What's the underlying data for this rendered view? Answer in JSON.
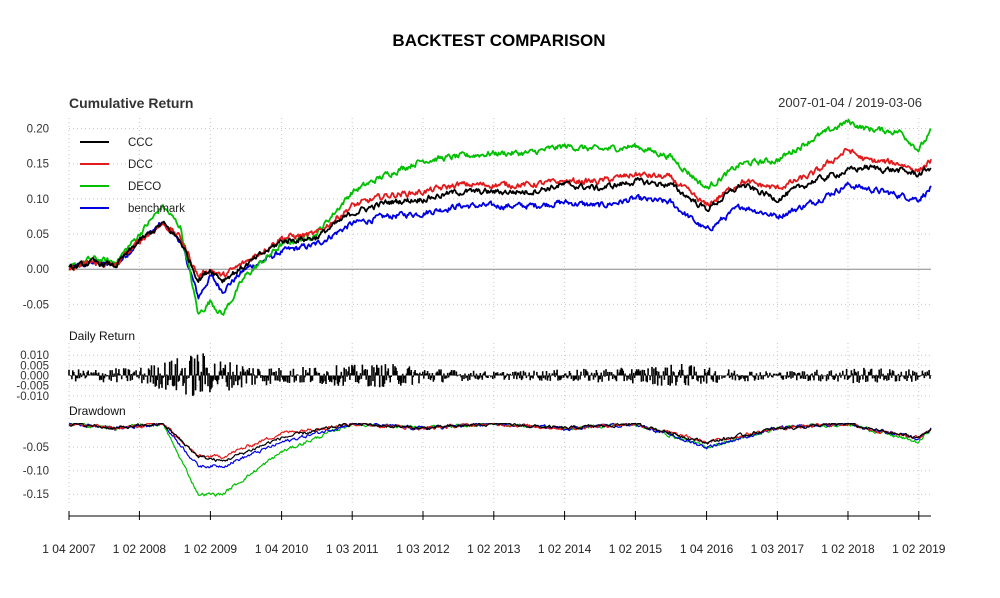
{
  "chart_data": {
    "type": "line",
    "title": "BACKTEST COMPARISON",
    "subtitle": "Cumulative Return",
    "date_range": "2007-01-04 / 2019-03-06",
    "x_tick_labels": [
      "1 04 2007",
      "1 02 2008",
      "1 02 2009",
      "1 04 2010",
      "1 03 2011",
      "1 03 2012",
      "1 02 2013",
      "1 02 2014",
      "1 02 2015",
      "1 04 2016",
      "1 03 2017",
      "1 02 2018",
      "1 02 2019"
    ],
    "grid": true,
    "legend_position": "top-left",
    "panels": [
      {
        "label": "Cumulative Return",
        "ylim": [
          -0.075,
          0.215
        ],
        "y_ticks": [
          "0.20",
          "0.15",
          "0.10",
          "0.05",
          "0.00",
          "-0.05"
        ],
        "y_tick_values": [
          0.2,
          0.15,
          0.1,
          0.05,
          0.0,
          -0.05
        ],
        "zero_line": true,
        "series": [
          {
            "name": "CCC",
            "color": "#000000",
            "x": [
              "2007-01-04",
              "2007-05-01",
              "2007-09-01",
              "2008-01-02",
              "2008-05-01",
              "2008-08-01",
              "2008-11-01",
              "2009-01-02",
              "2009-03-05",
              "2009-07-01",
              "2010-01-04",
              "2010-07-01",
              "2011-01-03",
              "2011-07-01",
              "2012-01-03",
              "2012-07-02",
              "2013-01-02",
              "2013-07-01",
              "2014-01-02",
              "2014-07-01",
              "2015-01-02",
              "2015-07-01",
              "2016-01-04",
              "2016-07-01",
              "2017-01-03",
              "2017-07-03",
              "2018-01-02",
              "2018-04-02",
              "2018-10-01",
              "2019-01-02",
              "2019-03-06"
            ],
            "values": [
              0.0,
              0.01,
              0.005,
              0.04,
              0.065,
              0.04,
              -0.015,
              0.0,
              -0.015,
              0.005,
              0.04,
              0.045,
              0.08,
              0.095,
              0.1,
              0.11,
              0.11,
              0.11,
              0.12,
              0.115,
              0.125,
              0.12,
              0.085,
              0.12,
              0.1,
              0.125,
              0.14,
              0.145,
              0.14,
              0.135,
              0.145
            ]
          },
          {
            "name": "DCC",
            "color": "#e31a1c",
            "x": [
              "2007-01-04",
              "2007-05-01",
              "2007-09-01",
              "2008-01-02",
              "2008-05-01",
              "2008-08-01",
              "2008-11-01",
              "2009-01-02",
              "2009-03-05",
              "2009-07-01",
              "2010-01-04",
              "2010-07-01",
              "2011-01-03",
              "2011-07-01",
              "2012-01-03",
              "2012-07-02",
              "2013-01-02",
              "2013-07-01",
              "2014-01-02",
              "2014-07-01",
              "2015-01-02",
              "2015-07-01",
              "2016-01-04",
              "2016-07-01",
              "2017-01-03",
              "2017-07-03",
              "2018-01-02",
              "2018-04-02",
              "2018-10-01",
              "2019-01-02",
              "2019-03-06"
            ],
            "values": [
              0.0,
              0.01,
              0.005,
              0.04,
              0.065,
              0.045,
              -0.01,
              0.0,
              -0.01,
              0.01,
              0.045,
              0.05,
              0.09,
              0.105,
              0.11,
              0.12,
              0.12,
              0.12,
              0.125,
              0.125,
              0.135,
              0.13,
              0.09,
              0.125,
              0.115,
              0.135,
              0.17,
              0.155,
              0.15,
              0.14,
              0.155
            ]
          },
          {
            "name": "DECO",
            "color": "#00c000",
            "x": [
              "2007-01-04",
              "2007-05-01",
              "2007-09-01",
              "2008-01-02",
              "2008-05-01",
              "2008-08-01",
              "2008-11-01",
              "2009-01-02",
              "2009-03-05",
              "2009-07-01",
              "2010-01-04",
              "2010-07-01",
              "2011-01-03",
              "2011-07-01",
              "2012-01-03",
              "2012-07-02",
              "2013-01-02",
              "2013-07-01",
              "2014-01-02",
              "2014-07-01",
              "2015-01-02",
              "2015-07-01",
              "2016-01-04",
              "2016-07-01",
              "2017-01-03",
              "2017-07-03",
              "2018-01-02",
              "2018-04-02",
              "2018-10-01",
              "2019-01-02",
              "2019-03-06"
            ],
            "values": [
              0.0,
              0.015,
              0.01,
              0.05,
              0.09,
              0.06,
              -0.065,
              -0.045,
              -0.065,
              -0.01,
              0.035,
              0.05,
              0.11,
              0.135,
              0.155,
              0.16,
              0.165,
              0.165,
              0.175,
              0.17,
              0.175,
              0.16,
              0.115,
              0.15,
              0.155,
              0.185,
              0.21,
              0.2,
              0.195,
              0.17,
              0.195
            ]
          },
          {
            "name": "benchmark",
            "color": "#0000e0",
            "x": [
              "2007-01-04",
              "2007-05-01",
              "2007-09-01",
              "2008-01-02",
              "2008-05-01",
              "2008-08-01",
              "2008-11-01",
              "2009-01-02",
              "2009-03-05",
              "2009-07-01",
              "2010-01-04",
              "2010-07-01",
              "2011-01-03",
              "2011-07-01",
              "2012-01-03",
              "2012-07-02",
              "2013-01-02",
              "2013-07-01",
              "2014-01-02",
              "2014-07-01",
              "2015-01-02",
              "2015-07-01",
              "2016-01-04",
              "2016-07-01",
              "2017-01-03",
              "2017-07-03",
              "2018-01-02",
              "2018-04-02",
              "2018-10-01",
              "2019-01-02",
              "2019-03-06"
            ],
            "values": [
              0.0,
              0.01,
              0.005,
              0.04,
              0.065,
              0.04,
              -0.04,
              -0.01,
              -0.03,
              0.0,
              0.025,
              0.035,
              0.065,
              0.075,
              0.08,
              0.09,
              0.09,
              0.09,
              0.095,
              0.09,
              0.1,
              0.095,
              0.055,
              0.09,
              0.075,
              0.095,
              0.12,
              0.115,
              0.105,
              0.1,
              0.115
            ]
          }
        ]
      },
      {
        "label": "Daily Return",
        "ylim": [
          -0.016,
          0.016
        ],
        "y_ticks": [
          "0.010",
          "0.005",
          "0.000",
          "-0.005",
          "-0.010"
        ],
        "y_tick_values": [
          0.01,
          0.005,
          0.0,
          -0.005,
          -0.01
        ],
        "series": [
          {
            "name": "",
            "color": "#000000",
            "x": [
              "2007-01-04",
              "2008-01-02",
              "2008-10-01",
              "2008-11-01",
              "2009-01-02",
              "2009-05-01",
              "2010-01-04",
              "2011-07-01",
              "2012-06-01",
              "2013-01-02",
              "2014-01-02",
              "2015-01-02",
              "2015-08-24",
              "2016-01-04",
              "2017-01-03",
              "2018-02-05",
              "2019-03-06"
            ],
            "amplitude": [
              0.003,
              0.004,
              0.011,
              0.013,
              0.009,
              0.007,
              0.004,
              0.006,
              0.003,
              0.002,
              0.003,
              0.004,
              0.006,
              0.004,
              0.002,
              0.004,
              0.003
            ]
          }
        ]
      },
      {
        "label": "Drawdown",
        "ylim": [
          -0.175,
          0.012
        ],
        "y_ticks": [
          "-0.05",
          "-0.10",
          "-0.15"
        ],
        "y_tick_values": [
          -0.05,
          -0.1,
          -0.15
        ],
        "series": [
          {
            "name": "CCC",
            "color": "#000000",
            "x": [
              "2007-01-04",
              "2007-09-01",
              "2008-05-01",
              "2008-11-01",
              "2009-03-05",
              "2010-01-04",
              "2011-01-03",
              "2012-01-03",
              "2013-01-02",
              "2014-01-02",
              "2015-01-02",
              "2016-01-04",
              "2017-01-03",
              "2018-01-02",
              "2018-04-02",
              "2019-01-02",
              "2019-03-06"
            ],
            "values": [
              0.0,
              -0.01,
              0.0,
              -0.07,
              -0.08,
              -0.03,
              0.0,
              -0.01,
              0.0,
              -0.01,
              0.0,
              -0.04,
              -0.01,
              0.0,
              -0.01,
              -0.03,
              -0.01
            ]
          },
          {
            "name": "DCC",
            "color": "#e31a1c",
            "x": [
              "2007-01-04",
              "2007-09-01",
              "2008-05-01",
              "2008-11-01",
              "2009-03-05",
              "2010-01-04",
              "2011-01-03",
              "2012-01-03",
              "2013-01-02",
              "2014-01-02",
              "2015-01-02",
              "2016-01-04",
              "2017-01-03",
              "2018-01-02",
              "2018-04-02",
              "2019-01-02",
              "2019-03-06"
            ],
            "values": [
              0.0,
              -0.01,
              0.0,
              -0.07,
              -0.07,
              -0.02,
              0.0,
              -0.01,
              0.0,
              -0.01,
              0.0,
              -0.04,
              -0.01,
              0.0,
              -0.01,
              -0.03,
              -0.01
            ]
          },
          {
            "name": "DECO",
            "color": "#00c000",
            "x": [
              "2007-01-04",
              "2007-09-01",
              "2008-05-01",
              "2008-11-01",
              "2009-03-05",
              "2010-01-04",
              "2011-01-03",
              "2012-01-03",
              "2013-01-02",
              "2014-01-02",
              "2015-01-02",
              "2016-01-04",
              "2017-01-03",
              "2018-01-02",
              "2018-04-02",
              "2019-01-02",
              "2019-03-06"
            ],
            "values": [
              0.0,
              -0.01,
              0.0,
              -0.15,
              -0.15,
              -0.06,
              0.0,
              -0.01,
              0.0,
              -0.01,
              0.0,
              -0.05,
              -0.01,
              0.0,
              -0.01,
              -0.04,
              -0.01
            ]
          },
          {
            "name": "benchmark",
            "color": "#0000e0",
            "x": [
              "2007-01-04",
              "2007-09-01",
              "2008-05-01",
              "2008-11-01",
              "2009-03-05",
              "2010-01-04",
              "2011-01-03",
              "2012-01-03",
              "2013-01-02",
              "2014-01-02",
              "2015-01-02",
              "2016-01-04",
              "2017-01-03",
              "2018-01-02",
              "2018-04-02",
              "2019-01-02",
              "2019-03-06"
            ],
            "values": [
              0.0,
              -0.01,
              0.0,
              -0.09,
              -0.09,
              -0.04,
              0.0,
              -0.01,
              0.0,
              -0.01,
              0.0,
              -0.05,
              -0.01,
              0.0,
              -0.01,
              -0.03,
              -0.01
            ]
          }
        ]
      }
    ]
  }
}
